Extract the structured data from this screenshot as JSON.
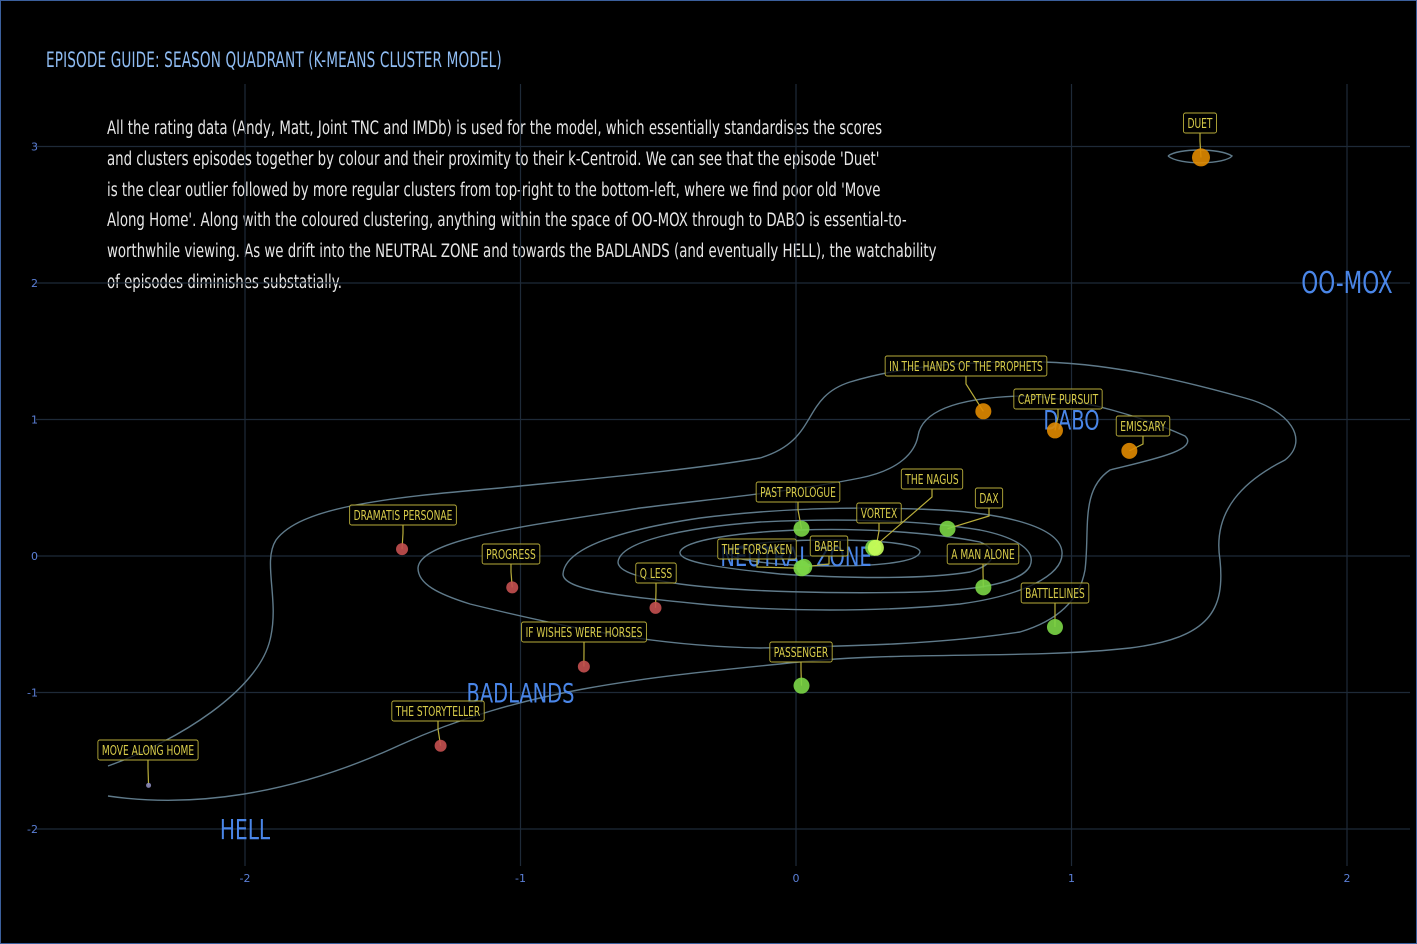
{
  "title": "EPISODE GUIDE: SEASON QUADRANT (K-MEANS CLUSTER MODEL)",
  "subtitle_lines": [
    "All the rating data (Andy, Matt, Joint TNC and IMDb) is used for the model, which essentially standardises the scores",
    "and clusters episodes together by colour and their proximity to their k-Centroid. We can see that the episode 'Duet'",
    "is the clear outlier followed by more regular clusters from top-right to the bottom-left, where we find poor old 'Move",
    "Along Home'. Along with the coloured clustering, anything within the space of OO-MOX through to DABO is essential-to-",
    "worthwhile viewing. As we drift into the NEUTRAL ZONE and towards the BADLANDS (and eventually HELL), the watchability",
    "of episodes diminishes substatially."
  ],
  "colors": {
    "background": "#000000",
    "grid": "#1e2a38",
    "contour": "#5f7a8a",
    "label_text": "#d8cc4a",
    "label_border": "#b8ad3a",
    "region_text": "#4a86e8",
    "tick_text": "#5b7fd6",
    "title": "#8fbcf2"
  },
  "chart_data": {
    "type": "scatter",
    "xlim": [
      -2.55,
      2.25
    ],
    "ylim": [
      -2.3,
      3.35
    ],
    "x_ticks": [
      "-2",
      "-1",
      "0",
      "1",
      "2"
    ],
    "y_ticks": [
      "-2",
      "-1",
      "0",
      "1",
      "2",
      "3"
    ],
    "x_tick_values": [
      -2,
      -1,
      0,
      1,
      2
    ],
    "y_tick_values": [
      -2,
      -1,
      0,
      1,
      2,
      3
    ],
    "grid": true,
    "clusters": {
      "outlier": "#e08a00",
      "top": "#e08a00",
      "high": "#7bd646",
      "centroid": "#c8ff5a",
      "low": "#c45050",
      "bottom": "#8a8ab8"
    },
    "regions": [
      {
        "name": "OO-MOX",
        "x": 2.0,
        "y": 2.0
      },
      {
        "name": "DABO",
        "x": 1.0,
        "y": 1.0
      },
      {
        "name": "NEUTRAL ZONE",
        "x": 0.0,
        "y": 0.0
      },
      {
        "name": "BADLANDS",
        "x": -1.0,
        "y": -1.0
      },
      {
        "name": "HELL",
        "x": -2.0,
        "y": -2.0
      }
    ],
    "points": [
      {
        "episode": "DUET",
        "x": 1.47,
        "y": 2.92,
        "cluster": "outlier"
      },
      {
        "episode": "IN THE HANDS OF THE PROPHETS",
        "x": 0.68,
        "y": 1.06,
        "cluster": "top"
      },
      {
        "episode": "CAPTIVE PURSUIT",
        "x": 0.94,
        "y": 0.92,
        "cluster": "top"
      },
      {
        "episode": "EMISSARY",
        "x": 1.21,
        "y": 0.77,
        "cluster": "top"
      },
      {
        "episode": "PAST PROLOGUE",
        "x": 0.02,
        "y": 0.2,
        "cluster": "high"
      },
      {
        "episode": "THE NAGUS",
        "x": 0.28,
        "y": 0.06,
        "cluster": "high"
      },
      {
        "episode": "VORTEX",
        "x": 0.29,
        "y": 0.06,
        "cluster": "centroid"
      },
      {
        "episode": "DAX",
        "x": 0.55,
        "y": 0.2,
        "cluster": "high"
      },
      {
        "episode": "THE FORSAKEN",
        "x": 0.02,
        "y": -0.09,
        "cluster": "high"
      },
      {
        "episode": "BABEL",
        "x": 0.03,
        "y": -0.08,
        "cluster": "high"
      },
      {
        "episode": "A MAN ALONE",
        "x": 0.68,
        "y": -0.23,
        "cluster": "high"
      },
      {
        "episode": "BATTLELINES",
        "x": 0.94,
        "y": -0.52,
        "cluster": "high"
      },
      {
        "episode": "PASSENGER",
        "x": 0.02,
        "y": -0.95,
        "cluster": "high"
      },
      {
        "episode": "DRAMATIS PERSONAE",
        "x": -1.43,
        "y": 0.05,
        "cluster": "low"
      },
      {
        "episode": "PROGRESS",
        "x": -1.03,
        "y": -0.23,
        "cluster": "low"
      },
      {
        "episode": "Q LESS",
        "x": -0.51,
        "y": -0.38,
        "cluster": "low"
      },
      {
        "episode": "IF WISHES WERE HORSES",
        "x": -0.77,
        "y": -0.81,
        "cluster": "low"
      },
      {
        "episode": "THE STORYTELLER",
        "x": -1.29,
        "y": -1.39,
        "cluster": "low"
      },
      {
        "episode": "MOVE ALONG HOME",
        "x": -2.35,
        "y": -1.68,
        "cluster": "bottom"
      }
    ]
  }
}
